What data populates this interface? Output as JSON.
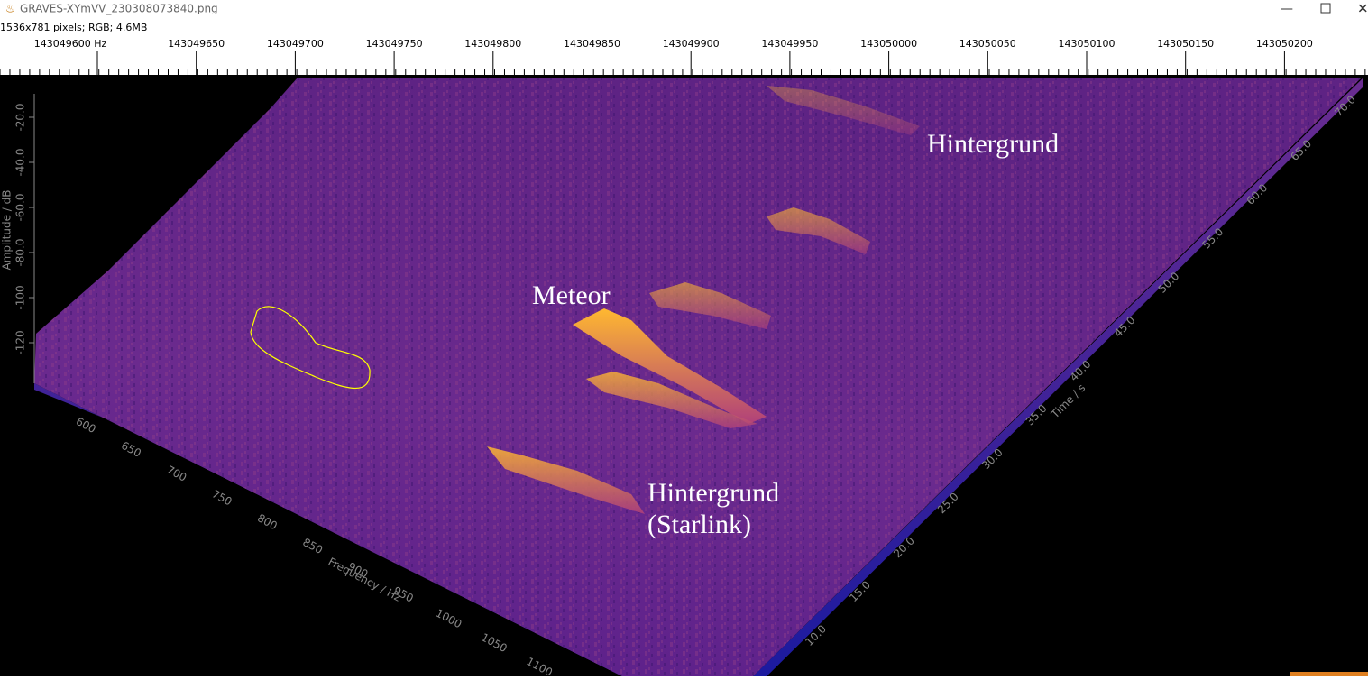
{
  "window": {
    "title": "GRAVES-XYmVV_230308073840.png",
    "info": "1536x781 pixels; RGB; 4.6MB"
  },
  "ruler": {
    "labels": [
      "143049600 Hz",
      "143049650",
      "143049700",
      "143049750",
      "143049800",
      "143049850",
      "143049900",
      "143049950",
      "143050000",
      "143050050",
      "143050100",
      "143050150",
      "143050200"
    ]
  },
  "plot": {
    "amplitude_axis": {
      "label": "Amplitude / dB",
      "ticks": [
        "-20.0",
        "-40.0",
        "-60.0",
        "-80.0",
        "-100",
        "-120"
      ]
    },
    "frequency_axis": {
      "label": "Frequency / Hz",
      "ticks": [
        "600",
        "650",
        "700",
        "750",
        "800",
        "850",
        "900",
        "950",
        "1000",
        "1050",
        "1100"
      ]
    },
    "time_axis": {
      "label": "Time / s",
      "ticks": [
        "10.0",
        "15.0",
        "20.0",
        "25.0",
        "30.0",
        "35.0",
        "40.0",
        "45.0",
        "50.0",
        "55.0",
        "60.0",
        "65.0",
        "70.0"
      ]
    },
    "annotations": {
      "background_top": "Hintergrund",
      "meteor": "Meteor",
      "background_starlink": [
        "Hintergrund",
        "(Starlink)"
      ]
    }
  }
}
